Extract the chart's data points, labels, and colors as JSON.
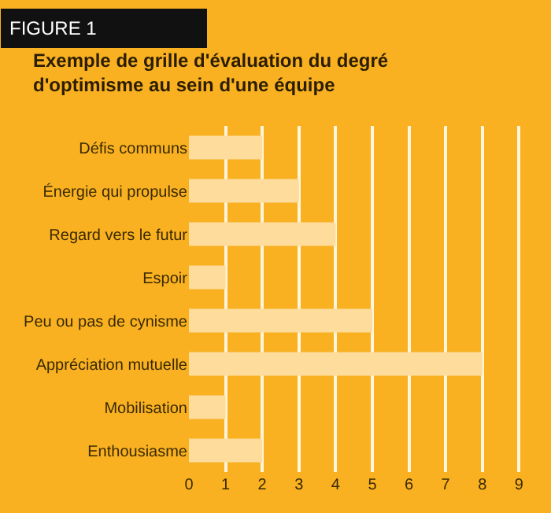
{
  "chart_data": {
    "type": "bar",
    "orientation": "horizontal",
    "title": "Exemple de grille d'évaluation du degré\nd'optimisme au sein d'une équipe",
    "annotations": [
      "FIGURE 1"
    ],
    "categories": [
      "Défis communs",
      "Énergie qui propulse",
      "Regard vers le futur",
      "Espoir",
      "Peu ou pas de cynisme",
      "Appréciation mutuelle",
      "Mobilisation",
      "Enthousiasme"
    ],
    "values": [
      2,
      3,
      4,
      1,
      5,
      8,
      1,
      2
    ],
    "color": "#fddc9c",
    "xlim": [
      0,
      9.1
    ],
    "xticks": [
      0,
      1,
      2,
      3,
      4,
      5,
      6,
      7,
      8,
      9
    ],
    "grid": "x"
  }
}
